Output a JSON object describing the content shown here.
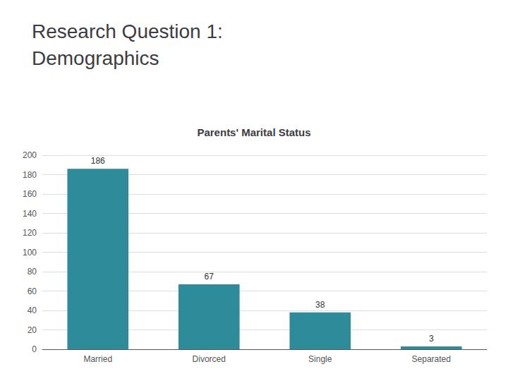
{
  "chart_data": {
    "type": "bar",
    "title": "Research Question 1:\nDemographics",
    "subtitle": "Parents' Marital Status",
    "categories": [
      "Married",
      "Divorced",
      "Single",
      "Separated"
    ],
    "values": [
      186,
      67,
      38,
      3
    ],
    "color": "#2e8b9a",
    "ylim": [
      0,
      200
    ],
    "yticks": [
      0,
      20,
      40,
      60,
      80,
      100,
      120,
      140,
      160,
      180,
      200
    ],
    "grid": true,
    "data_labels": true
  }
}
